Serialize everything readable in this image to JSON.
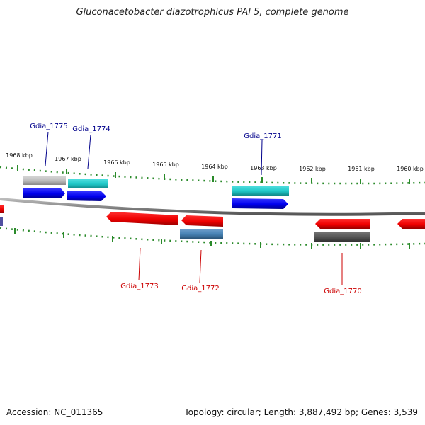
{
  "title": "Gluconacetobacter diazotrophicus PAl 5, complete genome",
  "footer": {
    "accession": "Accession: NC_011365",
    "summary": "Topology: circular; Length: 3,887,492 bp; Genes: 3,539"
  },
  "axis": {
    "kbp_labels": [
      "1968 kbp",
      "1967 kbp",
      "1966 kbp",
      "1965 kbp",
      "1964 kbp",
      "1963 kbp",
      "1962 kbp",
      "1961 kbp",
      "1960 kbp"
    ]
  },
  "genes": [
    {
      "id": "Gdia_1775",
      "strand": "forward",
      "color": "#0000cc"
    },
    {
      "id": "Gdia_1774",
      "strand": "forward",
      "color": "#0000cc"
    },
    {
      "id": "Gdia_1771",
      "strand": "forward",
      "color": "#0000cc"
    },
    {
      "id": "Gdia_1773",
      "strand": "reverse",
      "color": "#cc0000"
    },
    {
      "id": "Gdia_1772",
      "strand": "reverse",
      "color": "#cc0000"
    },
    {
      "id": "Gdia_1770",
      "strand": "reverse",
      "color": "#cc0000"
    }
  ],
  "colors": {
    "forward_gene": "#0000ff",
    "reverse_gene": "#ff0000",
    "tick": "#2a8a2a",
    "backbone": "#888888",
    "cyan_feature": "#20c8c8",
    "grey_feature": "#bbbbbb",
    "dark_feature": "#555555",
    "steel_feature": "#4682b4"
  }
}
